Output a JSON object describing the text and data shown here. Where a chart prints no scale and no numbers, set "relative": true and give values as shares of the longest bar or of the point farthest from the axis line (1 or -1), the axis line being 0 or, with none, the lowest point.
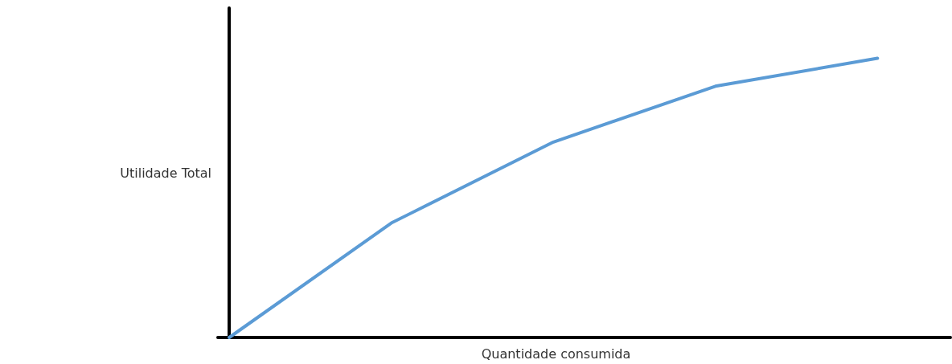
{
  "chart_data": {
    "type": "line",
    "relative": true,
    "xlabel": "Quantidade consumida",
    "ylabel": "Utilidade Total",
    "categories": [
      null,
      null,
      null,
      null,
      null
    ],
    "series": [
      {
        "color": "#5b9bd5",
        "values": [
          0,
          0.41,
          0.7,
          0.9,
          1
        ]
      }
    ],
    "marker": "none",
    "line_style": "solid",
    "grid": false
  }
}
